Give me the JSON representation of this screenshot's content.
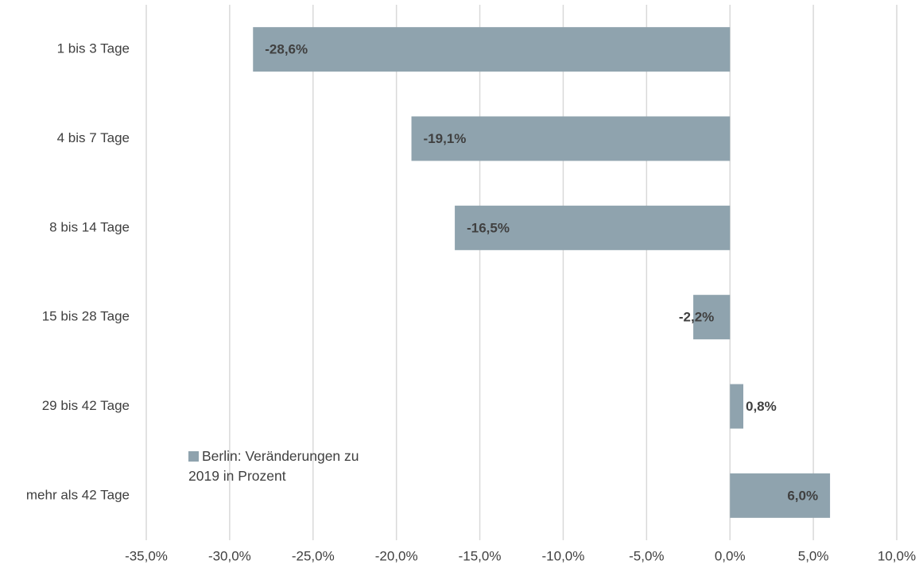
{
  "chart_data": {
    "type": "hbar",
    "categories": [
      "1 bis 3 Tage",
      "4 bis 7 Tage",
      "8 bis 14 Tage",
      "15 bis 28 Tage",
      "29 bis 42 Tage",
      "mehr als 42 Tage"
    ],
    "series": [
      {
        "name": "Berlin: Veränderungen zu 2019 in Prozent",
        "color": "#8fa3ae",
        "values": [
          -28.6,
          -19.1,
          -16.5,
          -2.2,
          0.8,
          6.0
        ],
        "value_labels": [
          "-28,6%",
          "-19,1%",
          "-16,5%",
          "-2,2%",
          "0,8%",
          "6,0%"
        ]
      }
    ],
    "xlim": [
      -35,
      10
    ],
    "xticks": [
      {
        "value": -35,
        "label": "-35,0%"
      },
      {
        "value": -30,
        "label": "-30,0%"
      },
      {
        "value": -25,
        "label": "-25,0%"
      },
      {
        "value": -20,
        "label": "-20,0%"
      },
      {
        "value": -15,
        "label": "-15,0%"
      },
      {
        "value": -10,
        "label": "-10,0%"
      },
      {
        "value": -5,
        "label": "-5,0%"
      },
      {
        "value": 0,
        "label": "0,0%"
      },
      {
        "value": 5,
        "label": "5,0%"
      },
      {
        "value": 10,
        "label": "10,0%"
      }
    ],
    "grid": true,
    "legend": "lower left"
  }
}
